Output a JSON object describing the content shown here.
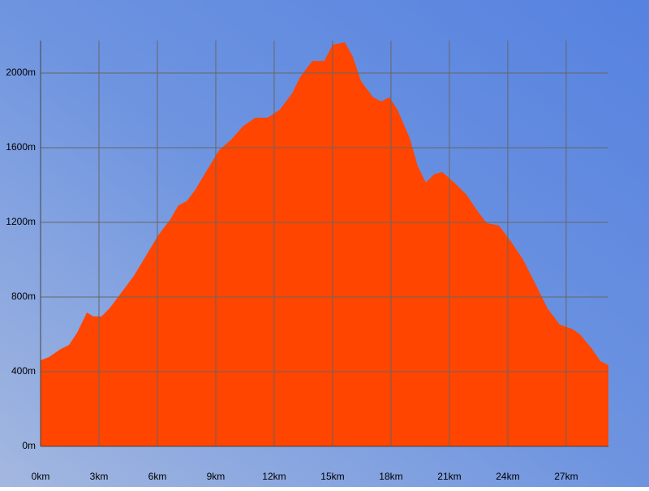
{
  "chart_data": {
    "type": "area",
    "color": "#ff4500",
    "grid": true,
    "x": [
      0,
      0.42,
      1.04,
      1.46,
      1.88,
      2.38,
      2.71,
      3.13,
      3.54,
      4.17,
      4.79,
      5.42,
      6.04,
      6.67,
      7.08,
      7.5,
      7.92,
      8.54,
      9.17,
      9.79,
      10.42,
      11.04,
      11.67,
      12.29,
      12.92,
      13.33,
      13.96,
      14.58,
      15,
      15.63,
      16.04,
      16.46,
      17.08,
      17.5,
      17.92,
      18.33,
      18.96,
      19.38,
      19.79,
      20.21,
      20.63,
      21.25,
      21.88,
      22.5,
      22.92,
      23.54,
      24.17,
      24.79,
      25.42,
      26.04,
      26.67,
      27.29,
      27.71,
      28.33,
      28.75,
      29.17
    ],
    "values": [
      461,
      478,
      522,
      543,
      609,
      717,
      696,
      696,
      739,
      826,
      913,
      1022,
      1130,
      1217,
      1291,
      1313,
      1370,
      1478,
      1587,
      1643,
      1717,
      1761,
      1761,
      1804,
      1891,
      1978,
      2065,
      2065,
      2152,
      2165,
      2087,
      1957,
      1870,
      1848,
      1870,
      1804,
      1652,
      1500,
      1413,
      1457,
      1470,
      1413,
      1348,
      1252,
      1196,
      1183,
      1096,
      1000,
      870,
      739,
      652,
      630,
      600,
      522,
      457,
      435
    ],
    "xlim": [
      0,
      29.17
    ],
    "ylim": [
      0,
      2174
    ],
    "xticks": [
      {
        "value": 0,
        "label": "0km"
      },
      {
        "value": 3,
        "label": "3km"
      },
      {
        "value": 6,
        "label": "6km"
      },
      {
        "value": 9,
        "label": "9km"
      },
      {
        "value": 12,
        "label": "12km"
      },
      {
        "value": 15,
        "label": "15km"
      },
      {
        "value": 18,
        "label": "18km"
      },
      {
        "value": 21,
        "label": "21km"
      },
      {
        "value": 24,
        "label": "24km"
      },
      {
        "value": 27,
        "label": "27km"
      }
    ],
    "yticks": [
      {
        "value": 0,
        "label": "0m"
      },
      {
        "value": 400,
        "label": "400m"
      },
      {
        "value": 800,
        "label": "800m"
      },
      {
        "value": 1200,
        "label": "1200m"
      },
      {
        "value": 1600,
        "label": "1600m"
      },
      {
        "value": 2000,
        "label": "2000m"
      }
    ]
  }
}
